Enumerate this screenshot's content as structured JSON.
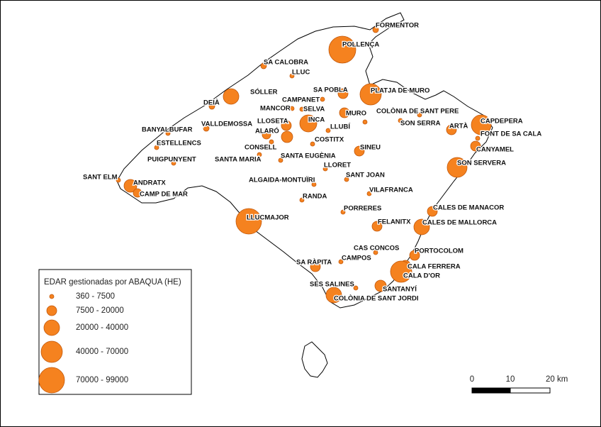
{
  "places": [
    "FORMENTOR",
    "POLLENÇA",
    "SA CALOBRA",
    "LLUC",
    "SÓLLER",
    "SA POBLA",
    "PLATJA DE MURO",
    "CAMPANET",
    "DEIÀ",
    "MANCOR",
    "SELVA",
    "MURO",
    "COLÒNIA DE SANT PERE",
    "LLOSETA",
    "INCA",
    "SON SERRA",
    "CAPDEPERA",
    "VALLDEMOSSA",
    "ARTÀ",
    "LLUBÍ",
    "BANYALBUFAR",
    "ALARÓ",
    "FONT DE SA CALA",
    "COSTITX",
    "ESTELLENCS",
    "CONSELL",
    "CANYAMEL",
    "SINEU",
    "SANTA MARIA",
    "SANTA EUGÈNIA",
    "PUIGPUNYENT",
    "SON SERVERA",
    "LLORET",
    "SANT ELM",
    "SANT JOAN",
    "ANDRATX",
    "ALGAIDA-MONTUÏRI",
    "VILAFRANCA",
    "CAMP DE MAR",
    "RANDA",
    "CALES DE MANACOR",
    "PORRERES",
    "LLUCMAJOR",
    "FELANITX",
    "CALES DE MALLORCA",
    "CAS CONCOS",
    "PORTOCOLOM",
    "CAMPOS",
    "SA RÀPITA",
    "CALA FERRERA",
    "CALA D'OR",
    "SES SALINES",
    "SANTANYÍ",
    "COLÒNIA DE SANT JORDI"
  ],
  "legend": {
    "title": "EDAR gestionadas por ABAQUA (HE)",
    "items": [
      "360 - 7500",
      "7500 - 20000",
      "20000 - 40000",
      "40000 - 70000",
      "70000 - 99000"
    ]
  },
  "scale_bar": {
    "labels": [
      "0",
      "10",
      "20 km"
    ]
  }
}
